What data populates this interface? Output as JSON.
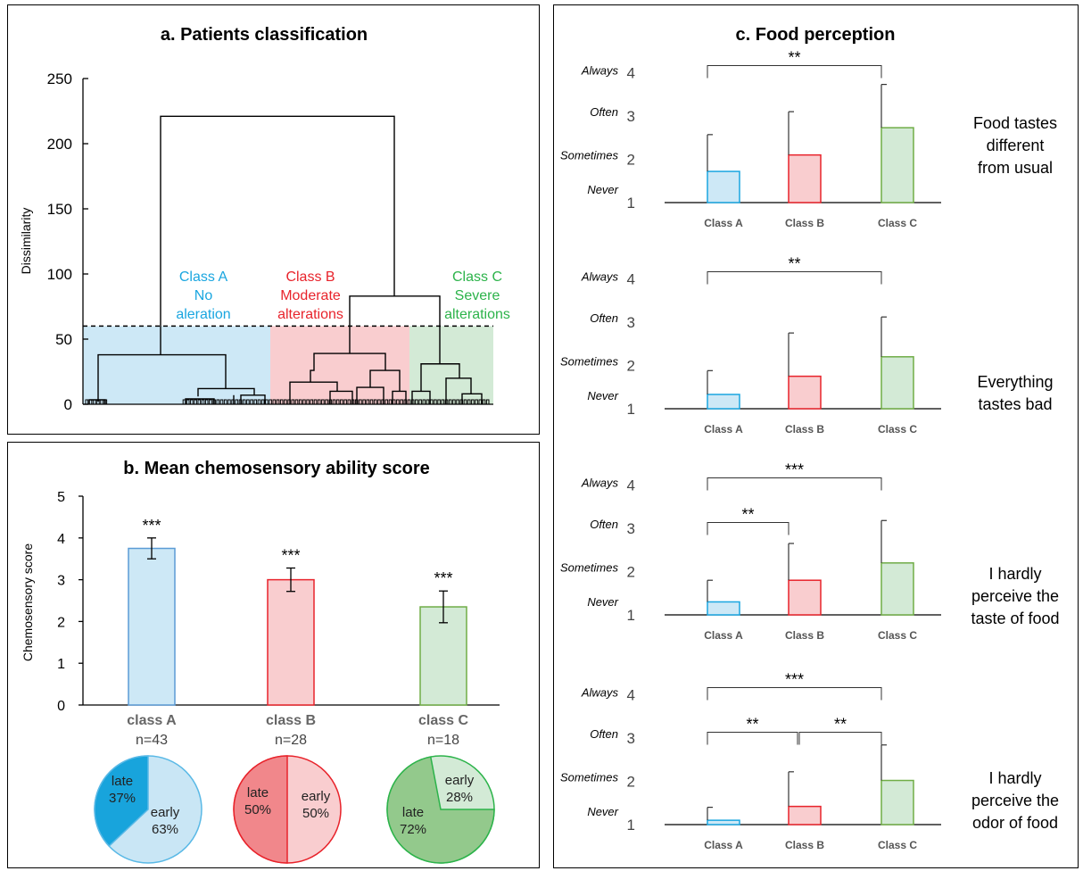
{
  "panel_a": {
    "title": "a. Patients classification",
    "ylabel": "Dissimilarity",
    "yticks": [
      "250",
      "200",
      "150",
      "100",
      "50",
      "0"
    ],
    "classes": [
      {
        "lines": [
          "Class A",
          "No",
          "aleration"
        ],
        "color": "#1aa6e0",
        "fill": "#cde8f6"
      },
      {
        "lines": [
          "Class B",
          "Moderate",
          "alterations"
        ],
        "color": "#e8232b",
        "fill": "#f9cdcf"
      },
      {
        "lines": [
          "Class C",
          "Severe",
          "alterations"
        ],
        "color": "#2cb34a",
        "fill": "#d3ead6"
      }
    ]
  },
  "panel_b": {
    "title": "b. Mean chemosensory ability score",
    "ylabel": "Chemosensory score",
    "classes": [
      {
        "name": "class A",
        "n": "n=43",
        "sig": "***"
      },
      {
        "name": "class B",
        "n": "n=28",
        "sig": "***"
      },
      {
        "name": "class C",
        "n": "n=18",
        "sig": "***"
      }
    ],
    "pies": [
      {
        "labels": [
          {
            "text": "late",
            "pct": "37%"
          },
          {
            "text": "early",
            "pct": "63%"
          }
        ]
      },
      {
        "labels": [
          {
            "text": "late",
            "pct": "50%"
          },
          {
            "text": "early",
            "pct": "50%"
          }
        ]
      },
      {
        "labels": [
          {
            "text": "late",
            "pct": "72%"
          },
          {
            "text": "early",
            "pct": "28%"
          }
        ]
      }
    ]
  },
  "panel_c": {
    "title": "c. Food perception",
    "freq_labels": [
      "Always",
      "Often",
      "Sometimes",
      "Never"
    ],
    "categories": [
      "Class A",
      "Class B",
      "Class C"
    ],
    "items": [
      {
        "caption": [
          "Food tastes",
          "different",
          "from usual"
        ]
      },
      {
        "caption": [
          "Everything",
          "tastes bad"
        ]
      },
      {
        "caption": [
          "I hardly",
          "perceive the",
          "taste of food"
        ]
      },
      {
        "caption": [
          "I hardly",
          "perceive the",
          "odor of food"
        ]
      }
    ]
  },
  "chart_data": [
    {
      "type": "dendrogram",
      "title": "a. Patients classification",
      "ylabel": "Dissimilarity",
      "ylim": [
        0,
        250
      ],
      "cut_height": 60,
      "merge_heights": {
        "root": 221,
        "A": 38,
        "B_C": 83,
        "B": 39,
        "C": 31
      },
      "clusters": [
        "Class A No aleration",
        "Class B Moderate alterations",
        "Class C Severe alterations"
      ]
    },
    {
      "type": "bar",
      "title": "b. Mean chemosensory ability score",
      "ylabel": "Chemosensory score",
      "categories": [
        "class A",
        "class B",
        "class C"
      ],
      "values": [
        3.75,
        3.0,
        2.35
      ],
      "errors": [
        0.25,
        0.28,
        0.38
      ],
      "ylim": [
        0,
        5
      ],
      "colors": [
        "#cde8f6",
        "#f9cdcf",
        "#d3ead6"
      ],
      "edge_colors": [
        "#5b9bd5",
        "#e8232b",
        "#70ad47"
      ]
    },
    {
      "type": "pie",
      "title": "class A n=43",
      "labels": [
        "late",
        "early"
      ],
      "values": [
        37,
        63
      ],
      "colors": [
        "#18a4dc",
        "#c9e6f5"
      ]
    },
    {
      "type": "pie",
      "title": "class B n=28",
      "labels": [
        "late",
        "early"
      ],
      "values": [
        50,
        50
      ],
      "colors": [
        "#f1878b",
        "#f9cdcf"
      ]
    },
    {
      "type": "pie",
      "title": "class C n=18",
      "labels": [
        "late",
        "early"
      ],
      "values": [
        72,
        28
      ],
      "colors": [
        "#93c98c",
        "#d3ead6"
      ]
    },
    {
      "type": "bar",
      "title": "Food tastes different from usual",
      "categories": [
        "Class A",
        "Class B",
        "Class C"
      ],
      "values": [
        1.72,
        2.1,
        2.73
      ],
      "errors": [
        0.85,
        1.0,
        1.0
      ],
      "ylim": [
        1,
        4
      ],
      "significance": [
        {
          "from": "Class A",
          "to": "Class C",
          "label": "**"
        }
      ]
    },
    {
      "type": "bar",
      "title": "Everything tastes bad",
      "categories": [
        "Class A",
        "Class B",
        "Class C"
      ],
      "values": [
        1.33,
        1.75,
        2.2
      ],
      "errors": [
        0.55,
        1.0,
        0.92
      ],
      "ylim": [
        1,
        4
      ],
      "significance": [
        {
          "from": "Class A",
          "to": "Class C",
          "label": "**"
        }
      ]
    },
    {
      "type": "bar",
      "title": "I hardly perceive the taste of food",
      "categories": [
        "Class A",
        "Class B",
        "Class C"
      ],
      "values": [
        1.3,
        1.8,
        2.2
      ],
      "errors": [
        0.5,
        0.85,
        0.98
      ],
      "ylim": [
        1,
        4
      ],
      "significance": [
        {
          "from": "Class A",
          "to": "Class C",
          "label": "***"
        },
        {
          "from": "Class A",
          "to": "Class B",
          "label": "**"
        }
      ]
    },
    {
      "type": "bar",
      "title": "I hardly perceive the odor of food",
      "categories": [
        "Class A",
        "Class B",
        "Class C"
      ],
      "values": [
        1.1,
        1.42,
        2.02
      ],
      "errors": [
        0.3,
        0.8,
        0.82
      ],
      "ylim": [
        1,
        4
      ],
      "significance": [
        {
          "from": "Class A",
          "to": "Class C",
          "label": "***"
        },
        {
          "from": "Class A",
          "to": "Class B",
          "label": "**"
        },
        {
          "from": "Class B",
          "to": "Class C",
          "label": "**"
        }
      ]
    }
  ]
}
